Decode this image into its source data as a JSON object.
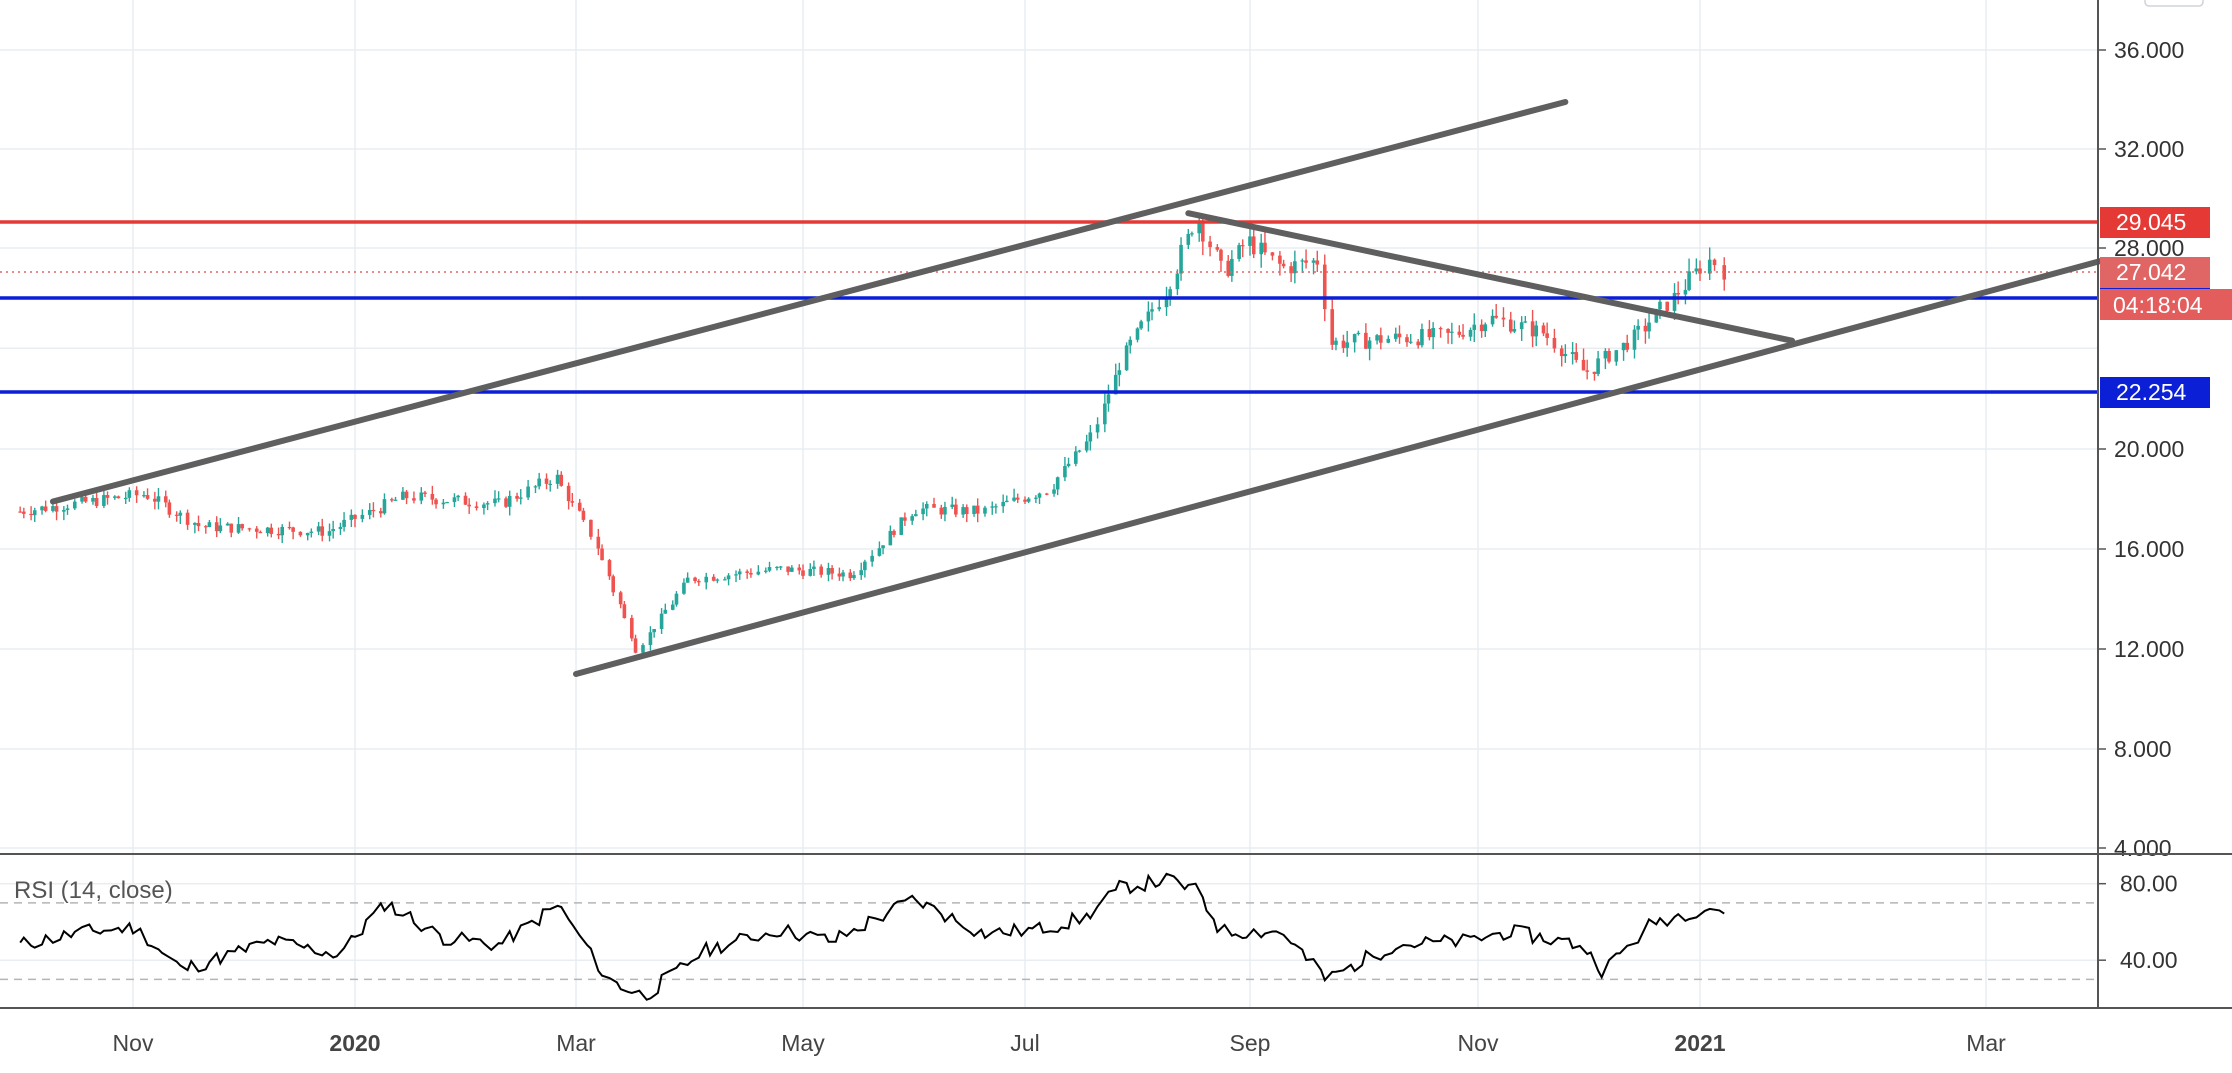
{
  "chart_data": [
    {
      "type": "candlestick",
      "title": "",
      "xlabel": "",
      "ylabel": "",
      "x_ticks": [
        "Nov",
        "2020",
        "Mar",
        "May",
        "Jul",
        "Sep",
        "Nov",
        "2021",
        "Mar"
      ],
      "x_tick_bold": [
        false,
        true,
        false,
        false,
        false,
        false,
        false,
        true,
        false
      ],
      "y_ticks": [
        "4.000",
        "8.000",
        "12.000",
        "16.000",
        "20.000",
        "28.000",
        "32.000",
        "36.000"
      ],
      "ylim": [
        4,
        38
      ],
      "grid": true,
      "price_path": [
        {
          "date": "2019-10-01",
          "price": 17.5
        },
        {
          "date": "2019-11-05",
          "price": 18.2
        },
        {
          "date": "2019-11-20",
          "price": 16.9
        },
        {
          "date": "2019-12-25",
          "price": 16.7
        },
        {
          "date": "2020-01-15",
          "price": 18.1
        },
        {
          "date": "2020-02-10",
          "price": 17.8
        },
        {
          "date": "2020-02-25",
          "price": 18.9
        },
        {
          "date": "2020-03-06",
          "price": 16.5
        },
        {
          "date": "2020-03-18",
          "price": 12.0
        },
        {
          "date": "2020-04-01",
          "price": 14.8
        },
        {
          "date": "2020-04-25",
          "price": 15.2
        },
        {
          "date": "2020-05-15",
          "price": 15.0
        },
        {
          "date": "2020-06-01",
          "price": 17.6
        },
        {
          "date": "2020-06-20",
          "price": 17.5
        },
        {
          "date": "2020-07-08",
          "price": 18.4
        },
        {
          "date": "2020-07-20",
          "price": 20.5
        },
        {
          "date": "2020-07-28",
          "price": 23.5
        },
        {
          "date": "2020-08-10",
          "price": 26.5
        },
        {
          "date": "2020-08-18",
          "price": 29.3
        },
        {
          "date": "2020-08-25",
          "price": 27.0
        },
        {
          "date": "2020-09-01",
          "price": 28.3
        },
        {
          "date": "2020-09-10",
          "price": 27.2
        },
        {
          "date": "2020-09-20",
          "price": 27.5
        },
        {
          "date": "2020-09-23",
          "price": 24.2
        },
        {
          "date": "2020-10-10",
          "price": 24.4
        },
        {
          "date": "2020-10-25",
          "price": 24.5
        },
        {
          "date": "2020-11-05",
          "price": 25.2
        },
        {
          "date": "2020-11-20",
          "price": 24.6
        },
        {
          "date": "2020-12-01",
          "price": 23.0
        },
        {
          "date": "2020-12-15",
          "price": 24.5
        },
        {
          "date": "2020-12-25",
          "price": 26.0
        },
        {
          "date": "2021-01-04",
          "price": 27.6
        },
        {
          "date": "2021-01-07",
          "price": 27.0
        }
      ],
      "horizontal_levels": [
        {
          "price": 29.045,
          "label": "29.045",
          "color": "#e53935"
        },
        {
          "price": 26.005,
          "label": "26.005",
          "color": "#0a1fd6"
        },
        {
          "price": 22.254,
          "label": "22.254",
          "color": "#0a1fd6"
        }
      ],
      "current_price": {
        "price": 27.042,
        "label": "27.042",
        "countdown": "04:18:04",
        "color": "#e06666"
      },
      "trend_lines": [
        {
          "from": {
            "date": "2019-10-10",
            "price": 17.9
          },
          "to": {
            "date": "2020-11-25",
            "price": 33.9
          }
        },
        {
          "from": {
            "date": "2020-03-01",
            "price": 11.0
          },
          "to": {
            "date": "2021-03-25",
            "price": 27.5
          }
        },
        {
          "from": {
            "date": "2020-08-15",
            "price": 29.4
          },
          "to": {
            "date": "2021-01-20",
            "price": 24.3
          }
        }
      ],
      "colors": {
        "up": "#26a69a",
        "down": "#ef5350",
        "trendline": "#5f5f5f"
      }
    },
    {
      "type": "line",
      "title": "RSI (14, close)",
      "y_ticks": [
        "80.00",
        "40.00"
      ],
      "ylim": [
        15,
        95
      ],
      "bands": [
        70,
        30
      ],
      "series": [
        {
          "x": [
            "2019-10-01",
            "2019-10-20",
            "2019-11-02",
            "2019-11-15",
            "2019-12-10",
            "2019-12-28",
            "2020-01-10",
            "2020-01-25",
            "2020-02-10",
            "2020-02-26",
            "2020-03-10",
            "2020-03-20",
            "2020-04-05",
            "2020-04-25",
            "2020-05-10",
            "2020-06-01",
            "2020-06-20",
            "2020-07-05",
            "2020-07-18",
            "2020-07-28",
            "2020-08-10",
            "2020-08-18",
            "2020-08-25",
            "2020-09-10",
            "2020-09-22",
            "2020-10-10",
            "2020-10-30",
            "2020-11-10",
            "2020-11-30",
            "2020-12-06",
            "2020-12-20",
            "2021-01-04",
            "2021-01-08"
          ],
          "values": [
            48,
            55,
            57,
            35,
            50,
            43,
            70,
            52,
            48,
            69,
            30,
            21,
            45,
            56,
            50,
            72,
            54,
            56,
            62,
            78,
            82,
            76,
            55,
            55,
            30,
            48,
            50,
            55,
            48,
            35,
            60,
            68,
            64
          ]
        }
      ]
    }
  ]
}
